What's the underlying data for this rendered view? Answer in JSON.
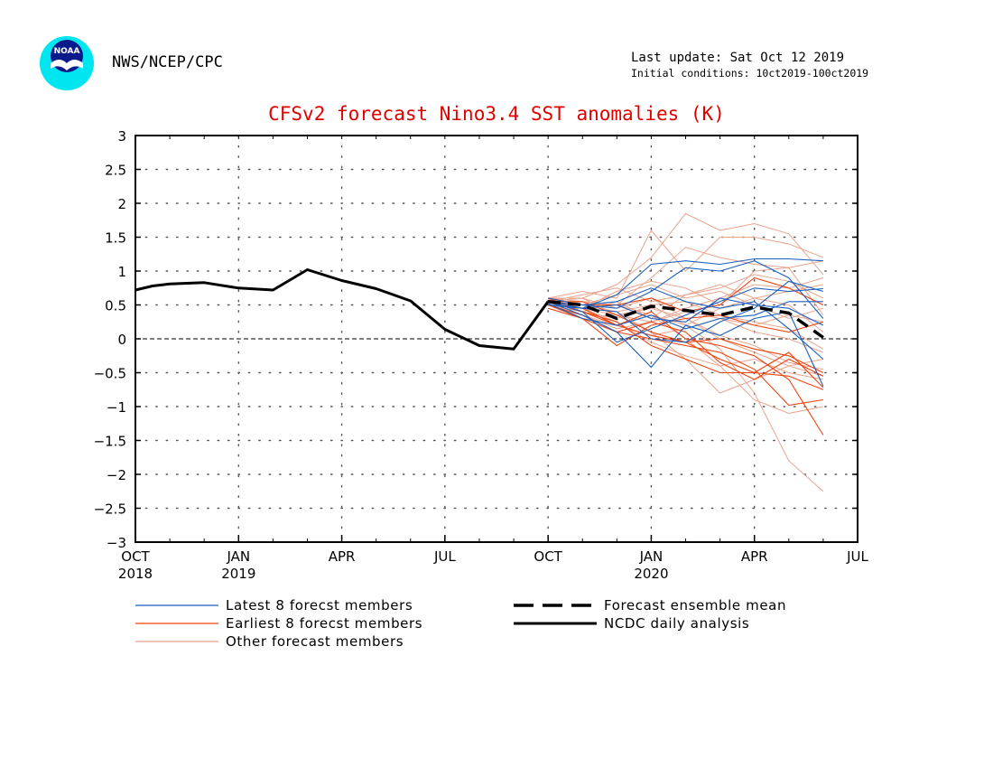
{
  "header": {
    "logo_text": "NOAA",
    "org": "NWS/NCEP/CPC",
    "last_update": "Last update: Sat Oct 12 2019",
    "initial_conditions": "Initial conditions: 10ct2019-100ct2019"
  },
  "colors": {
    "title": "#e00000",
    "latest": "#1a5fbf",
    "earliest": "#ee4411",
    "other": "#e8a48e",
    "analysis": "#000000",
    "ensemble_mean": "#000000"
  },
  "chart_data": {
    "type": "line",
    "title": "CFSv2 forecast Nino3.4 SST anomalies (K)",
    "xlabel": "",
    "ylabel": "",
    "xlim": [
      0,
      21
    ],
    "ylim": [
      -3,
      3
    ],
    "grid": "dotted",
    "zero_line": "dashed",
    "legend_position": "below",
    "x_ticks": [
      {
        "x": 0,
        "label": "OCT",
        "sub": "2018"
      },
      {
        "x": 3,
        "label": "JAN",
        "sub": "2019"
      },
      {
        "x": 6,
        "label": "APR",
        "sub": ""
      },
      {
        "x": 9,
        "label": "JUL",
        "sub": ""
      },
      {
        "x": 12,
        "label": "OCT",
        "sub": ""
      },
      {
        "x": 15,
        "label": "JAN",
        "sub": "2020"
      },
      {
        "x": 18,
        "label": "APR",
        "sub": ""
      },
      {
        "x": 21,
        "label": "JUL",
        "sub": ""
      }
    ],
    "y_ticks": [
      {
        "v": 3,
        "label": "3"
      },
      {
        "v": 2.5,
        "label": "2.5"
      },
      {
        "v": 2,
        "label": "2"
      },
      {
        "v": 1.5,
        "label": "1.5"
      },
      {
        "v": 1,
        "label": "1"
      },
      {
        "v": 0.5,
        "label": "0.5"
      },
      {
        "v": 0,
        "label": "0"
      },
      {
        "v": -0.5,
        "label": "−0.5"
      },
      {
        "v": -1,
        "label": "−1"
      },
      {
        "v": -1.5,
        "label": "−1.5"
      },
      {
        "v": -2,
        "label": "−2"
      },
      {
        "v": -2.5,
        "label": "−2.5"
      },
      {
        "v": -3,
        "label": "−3"
      }
    ],
    "series": [
      {
        "name": "NCDC daily analysis",
        "kind": "analysis",
        "x": [
          0,
          0.5,
          1,
          2,
          3,
          4,
          5,
          6,
          7,
          8,
          9,
          10,
          11,
          12
        ],
        "y": [
          0.72,
          0.78,
          0.81,
          0.83,
          0.75,
          0.72,
          1.02,
          0.86,
          0.74,
          0.56,
          0.14,
          -0.1,
          -0.15,
          0.55
        ]
      },
      {
        "name": "Forecast ensemble mean",
        "kind": "mean",
        "x": [
          12,
          13,
          14,
          15,
          16,
          17,
          18,
          19,
          20
        ],
        "y": [
          0.55,
          0.5,
          0.3,
          0.48,
          0.42,
          0.35,
          0.47,
          0.38,
          0.02
        ]
      }
    ],
    "member_x": [
      12,
      13,
      14,
      15,
      16,
      17,
      18,
      19,
      20
    ],
    "latest_members": [
      [
        0.5,
        0.45,
        0.65,
        1.1,
        1.15,
        1.1,
        1.18,
        1.18,
        1.15
      ],
      [
        0.55,
        0.5,
        0.45,
        0.7,
        1.05,
        1.0,
        1.15,
        0.9,
        0.3
      ],
      [
        0.55,
        0.4,
        -0.05,
        0.15,
        0.35,
        0.55,
        0.75,
        0.7,
        0.74
      ],
      [
        0.55,
        0.35,
        0.1,
        -0.42,
        0.2,
        0.05,
        0.3,
        0.4,
        -0.7
      ],
      [
        0.5,
        0.45,
        0.5,
        0.3,
        0.25,
        0.6,
        0.5,
        0.45,
        0.2
      ],
      [
        0.6,
        0.5,
        0.55,
        0.75,
        0.55,
        0.45,
        0.55,
        0.15,
        -0.3
      ],
      [
        0.52,
        0.3,
        0.2,
        0.35,
        0.15,
        0.3,
        0.35,
        0.55,
        0.55
      ],
      [
        0.55,
        0.45,
        0.4,
        0.0,
        -0.05,
        0.25,
        0.45,
        0.85,
        0.7
      ]
    ],
    "earliest_members": [
      [
        0.55,
        0.4,
        0.2,
        0.05,
        -0.05,
        -0.3,
        -0.5,
        -0.2,
        -0.72
      ],
      [
        0.5,
        0.3,
        0.1,
        0.0,
        -0.1,
        -0.2,
        -0.45,
        -0.98,
        -0.9
      ],
      [
        0.55,
        0.45,
        0.2,
        0.4,
        0.0,
        -0.1,
        -0.25,
        -0.6,
        -1.42
      ],
      [
        0.6,
        0.5,
        0.5,
        0.6,
        0.4,
        0.5,
        0.9,
        0.75,
        0.5
      ],
      [
        0.5,
        0.35,
        0.1,
        0.25,
        0.1,
        -0.35,
        -0.6,
        -0.3,
        -0.55
      ],
      [
        0.55,
        0.55,
        0.35,
        0.1,
        -0.05,
        0.0,
        -0.15,
        -0.25,
        -0.5
      ],
      [
        0.6,
        0.4,
        0.25,
        -0.1,
        -0.3,
        -0.5,
        -0.5,
        -0.55,
        -0.75
      ],
      [
        0.45,
        0.3,
        -0.1,
        0.2,
        0.3,
        0.35,
        0.2,
        0.1,
        0.25
      ]
    ],
    "other_members": [
      [
        0.6,
        0.7,
        0.6,
        1.6,
        1.0,
        1.5,
        1.5,
        1.4,
        1.2
      ],
      [
        0.55,
        0.6,
        0.8,
        1.2,
        1.85,
        1.6,
        1.7,
        1.55,
        0.95
      ],
      [
        0.5,
        0.55,
        0.5,
        0.9,
        1.35,
        1.2,
        1.1,
        1.05,
        1.15
      ],
      [
        0.55,
        0.45,
        0.7,
        0.85,
        0.75,
        0.5,
        1.0,
        1.05,
        0.35
      ],
      [
        0.5,
        0.4,
        0.3,
        0.5,
        0.2,
        -0.15,
        -0.8,
        -1.8,
        -2.25
      ],
      [
        0.6,
        0.5,
        0.4,
        0.1,
        -0.3,
        -0.8,
        -0.6,
        -0.4,
        -0.55
      ],
      [
        0.5,
        0.35,
        0.2,
        0.35,
        0.0,
        -0.4,
        -0.9,
        -1.1,
        -1.0
      ],
      [
        0.55,
        0.65,
        0.75,
        0.55,
        0.65,
        0.8,
        0.6,
        0.7,
        0.8
      ],
      [
        0.52,
        0.45,
        0.35,
        0.25,
        0.4,
        0.3,
        0.1,
        0.0,
        -0.2
      ],
      [
        0.6,
        0.6,
        0.45,
        0.6,
        0.3,
        0.0,
        -0.2,
        -0.4,
        -0.3
      ],
      [
        0.5,
        0.4,
        0.55,
        0.3,
        0.65,
        0.75,
        0.95,
        0.85,
        0.6
      ],
      [
        0.55,
        0.3,
        0.2,
        0.05,
        0.15,
        0.3,
        0.2,
        0.35,
        0.25
      ],
      [
        0.6,
        0.55,
        0.5,
        0.35,
        0.2,
        0.45,
        0.6,
        0.5,
        0.1
      ],
      [
        0.5,
        0.45,
        0.25,
        -0.05,
        -0.25,
        -0.4,
        -0.3,
        -0.5,
        -0.6
      ],
      [
        0.55,
        0.5,
        0.65,
        0.8,
        0.6,
        0.7,
        0.5,
        0.3,
        0.45
      ],
      [
        0.58,
        0.45,
        0.4,
        0.5,
        0.55,
        0.35,
        0.25,
        0.15,
        -0.15
      ],
      [
        0.5,
        0.35,
        0.15,
        0.25,
        0.45,
        0.6,
        0.8,
        0.75,
        0.9
      ],
      [
        0.55,
        0.6,
        0.35,
        0.45,
        0.3,
        0.05,
        -0.1,
        -0.35,
        -0.45
      ]
    ],
    "legend": [
      {
        "label": "Latest 8 forecst members",
        "kind": "latest"
      },
      {
        "label": "Earliest 8 forecst members",
        "kind": "earliest"
      },
      {
        "label": "Other forecast members",
        "kind": "other"
      },
      {
        "label": "Forecast ensemble mean",
        "kind": "mean"
      },
      {
        "label": "NCDC daily analysis",
        "kind": "analysis"
      }
    ]
  }
}
